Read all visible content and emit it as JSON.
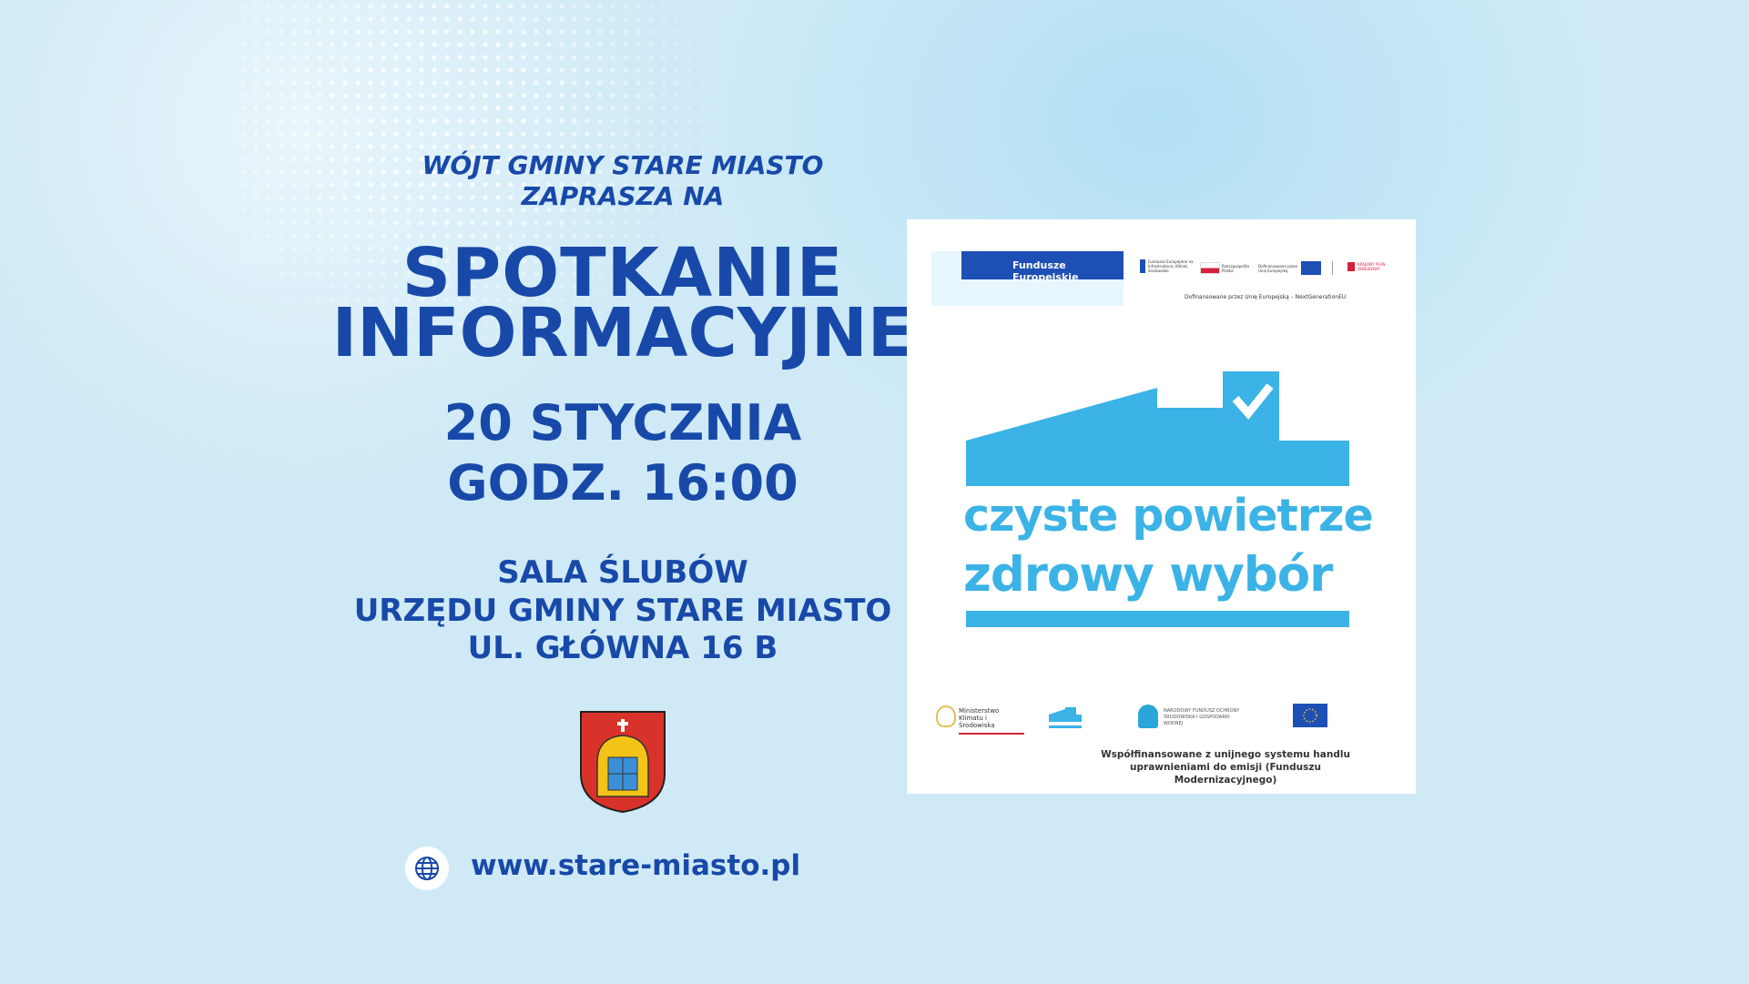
{
  "header": {
    "line1": "WÓJT GMINY STARE MIASTO",
    "line2": "ZAPRASZA NA"
  },
  "title": {
    "line1": "SPOTKANIE",
    "line2": "INFORMACYJNE"
  },
  "date": {
    "day": "20 STYCZNIA",
    "time": "GODZ. 16:00"
  },
  "location": {
    "line1": "SALA ŚLUBÓW",
    "line2": "URZĘDU GMINY STARE MIASTO",
    "line3": "UL. GŁÓWNA 16 B"
  },
  "website": {
    "icon": "globe-icon",
    "url": "www.stare-miasto.pl"
  },
  "card": {
    "top_logos": {
      "fe": "Fundusze Europejskie",
      "fe_program": "Fundusze Europejskie na Infrastrukturę, Klimat, Środowisko",
      "pl": "Rzeczpospolita Polska",
      "eu": "Dofinansowane przez Unię Europejską",
      "kpo": "KRAJOWY PLAN ODBUDOWY",
      "caption": "Dofinansowane przez Unię Europejską – NextGenerationEU"
    },
    "program": {
      "line1": "czyste powietrze",
      "line2": "zdrowy wybór"
    },
    "bottom_logos": {
      "ministry": "Ministerstwo Klimatu i Środowiska",
      "nfos": "NARODOWY FUNDUSZ OCHRONY ŚRODOWISKA I GOSPODARKI WODNEJ"
    },
    "caption": {
      "line1": "Współfinansowane z unijnego systemu handlu",
      "line2": "uprawnieniami do emisji (Funduszu Modernizacyjnego)"
    }
  },
  "colors": {
    "text": "#1849a9",
    "program": "#3bb3e6",
    "background": "#cfeaf6"
  }
}
